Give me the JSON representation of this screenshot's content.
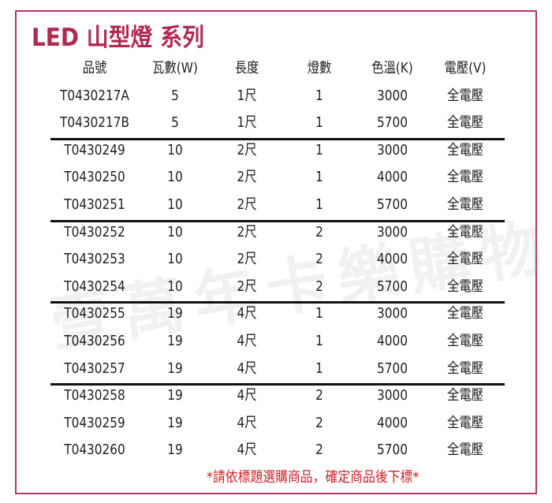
{
  "title": "LED 山型燈 系列",
  "watermark": "壹萬年卡樂購物",
  "colors": {
    "border": "#b3365e",
    "title": "#b0294f",
    "note": "#d0202a"
  },
  "table": {
    "headers": [
      "品號",
      "瓦數(W)",
      "長度",
      "燈數",
      "色溫(K)",
      "電壓(V)"
    ],
    "rows": [
      [
        "T0430217A",
        "5",
        "1尺",
        "1",
        "3000",
        "全電壓"
      ],
      [
        "T0430217B",
        "5",
        "1尺",
        "1",
        "5700",
        "全電壓"
      ],
      [
        "T0430249",
        "10",
        "2尺",
        "1",
        "3000",
        "全電壓"
      ],
      [
        "T0430250",
        "10",
        "2尺",
        "1",
        "4000",
        "全電壓"
      ],
      [
        "T0430251",
        "10",
        "2尺",
        "1",
        "5700",
        "全電壓"
      ],
      [
        "T0430252",
        "10",
        "2尺",
        "2",
        "3000",
        "全電壓"
      ],
      [
        "T0430253",
        "10",
        "2尺",
        "2",
        "4000",
        "全電壓"
      ],
      [
        "T0430254",
        "10",
        "2尺",
        "2",
        "5700",
        "全電壓"
      ],
      [
        "T0430255",
        "19",
        "4尺",
        "1",
        "3000",
        "全電壓"
      ],
      [
        "T0430256",
        "19",
        "4尺",
        "1",
        "4000",
        "全電壓"
      ],
      [
        "T0430257",
        "19",
        "4尺",
        "1",
        "5700",
        "全電壓"
      ],
      [
        "T0430258",
        "19",
        "4尺",
        "2",
        "3000",
        "全電壓"
      ],
      [
        "T0430259",
        "19",
        "4尺",
        "2",
        "4000",
        "全電壓"
      ],
      [
        "T0430260",
        "19",
        "4尺",
        "2",
        "5700",
        "全電壓"
      ]
    ]
  },
  "note": "*請依標題選購商品，確定商品後下標*"
}
